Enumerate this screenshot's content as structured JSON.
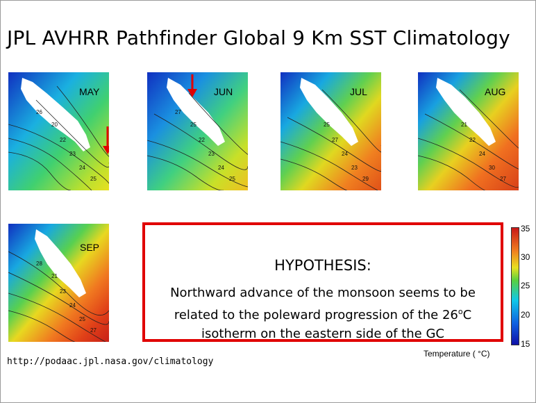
{
  "title": "JPL AVHRR Pathfinder Global 9 Km SST Climatology",
  "maps": [
    {
      "month": "MAY",
      "contours": [
        "20",
        "22",
        "23",
        "24",
        "25",
        "26"
      ]
    },
    {
      "month": "JUN",
      "contours": [
        "25",
        "22",
        "23",
        "24",
        "25",
        "27"
      ]
    },
    {
      "month": "JUL",
      "contours": [
        "25",
        "27",
        "24",
        "23",
        "29"
      ]
    },
    {
      "month": "AUG",
      "contours": [
        "21",
        "22",
        "24",
        "30",
        "27"
      ]
    },
    {
      "month": "SEP",
      "contours": [
        "21",
        "23",
        "24",
        "25",
        "27",
        "28"
      ]
    }
  ],
  "hypothesis": {
    "heading": "HYPOTHESIS:",
    "line1": "Northward advance of the monsoon seems to be",
    "line2_a": "related to the poleward progression of the 26",
    "line2_sup": "o",
    "line2_b": "C",
    "line3": "isotherm on the eastern side of the GC"
  },
  "source_url": "http://podaac.jpl.nasa.gov/climatology",
  "colorbar": {
    "ticks": [
      "35",
      "30",
      "25",
      "20",
      "15"
    ],
    "caption": "Temperature ( °C)"
  },
  "colors": {
    "highlight_border": "#e00000",
    "arrow": "#e00000"
  }
}
